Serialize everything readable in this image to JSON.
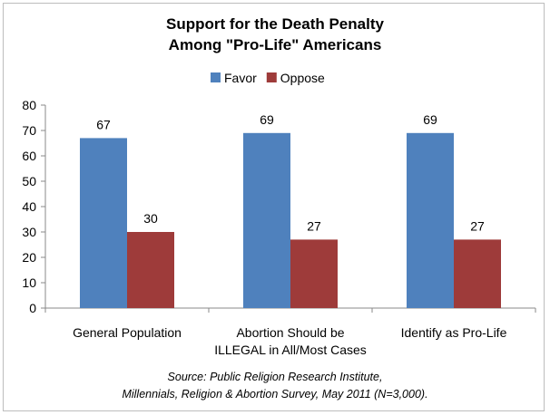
{
  "chart_data": {
    "type": "bar",
    "title": [
      "Support for the Death Penalty",
      "Among \"Pro-Life\" Americans"
    ],
    "categories": [
      [
        "General Population"
      ],
      [
        "Abortion Should be",
        "ILLEGAL in All/Most Cases"
      ],
      [
        "Identify as Pro-Life"
      ]
    ],
    "series": [
      {
        "name": "Favor",
        "color": "#4F81BD",
        "values": [
          67,
          69,
          69
        ]
      },
      {
        "name": "Oppose",
        "color": "#9E3B3A",
        "values": [
          30,
          27,
          27
        ]
      }
    ],
    "ylim": [
      0,
      80
    ],
    "yticks": [
      0,
      10,
      20,
      30,
      40,
      50,
      60,
      70,
      80
    ],
    "grid": false,
    "legend": "top",
    "xlabel": "",
    "ylabel": "",
    "source": [
      "Source: Public Religion Research Institute,",
      "Millennials, Religion & Abortion Survey, May 2011 (N=3,000)."
    ]
  }
}
